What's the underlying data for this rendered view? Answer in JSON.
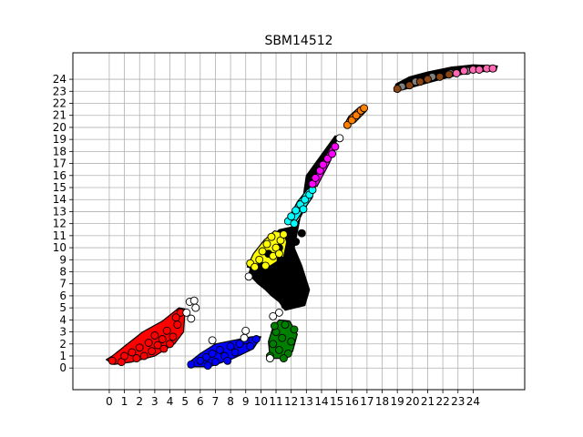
{
  "chart_data": {
    "type": "scatter",
    "title": "SBM14512",
    "xlabel": "",
    "ylabel": "",
    "xlim": [
      -2.4,
      27.4
    ],
    "ylim": [
      -1.8,
      26.2
    ],
    "xticks": [
      "0",
      "1",
      "2",
      "3",
      "4",
      "5",
      "6",
      "7",
      "8",
      "9",
      "10",
      "11",
      "12",
      "13",
      "14",
      "15",
      "16",
      "17",
      "18",
      "19",
      "20",
      "21",
      "22",
      "23",
      "24"
    ],
    "yticks": [
      "0",
      "1",
      "2",
      "3",
      "4",
      "5",
      "6",
      "7",
      "8",
      "9",
      "10",
      "11",
      "12",
      "13",
      "14",
      "15",
      "16",
      "17",
      "18",
      "19",
      "20",
      "21",
      "22",
      "23",
      "24"
    ],
    "grid": true,
    "legend": "none",
    "series": [
      {
        "color": "#000000",
        "points": [
          [
            9.5,
            8.0
          ],
          [
            10.0,
            8.5
          ],
          [
            10.2,
            7.2
          ],
          [
            10.5,
            9.5
          ],
          [
            10.8,
            6.5
          ],
          [
            11.0,
            8.0
          ],
          [
            11.3,
            9.0
          ],
          [
            11.5,
            7.0
          ],
          [
            11.8,
            6.0
          ],
          [
            12.0,
            8.5
          ],
          [
            12.2,
            5.5
          ],
          [
            12.5,
            7.5
          ],
          [
            12.8,
            6.5
          ],
          [
            11.2,
            10.0
          ],
          [
            12.3,
            10.5
          ],
          [
            12.7,
            11.2
          ],
          [
            10.6,
            7.8
          ],
          [
            11.6,
            5.2
          ]
        ]
      },
      {
        "color": "#ff0000",
        "points": [
          [
            0.2,
            0.6
          ],
          [
            0.8,
            0.5
          ],
          [
            1.0,
            1.0
          ],
          [
            1.5,
            1.3
          ],
          [
            2.0,
            1.7
          ],
          [
            2.3,
            1.0
          ],
          [
            2.6,
            2.1
          ],
          [
            3.0,
            2.7
          ],
          [
            3.2,
            1.9
          ],
          [
            3.5,
            2.4
          ],
          [
            3.8,
            3.1
          ],
          [
            4.0,
            2.0
          ],
          [
            4.2,
            2.6
          ],
          [
            4.5,
            3.6
          ],
          [
            4.7,
            4.6
          ],
          [
            1.8,
            0.8
          ],
          [
            2.8,
            1.4
          ],
          [
            3.6,
            1.6
          ],
          [
            4.4,
            4.2
          ]
        ]
      },
      {
        "color": "#0000ff",
        "points": [
          [
            5.4,
            0.3
          ],
          [
            6.0,
            0.6
          ],
          [
            6.4,
            0.9
          ],
          [
            6.8,
            1.2
          ],
          [
            7.0,
            0.5
          ],
          [
            7.3,
            1.5
          ],
          [
            7.6,
            1.0
          ],
          [
            8.0,
            1.8
          ],
          [
            8.3,
            1.3
          ],
          [
            8.6,
            2.0
          ],
          [
            9.0,
            2.3
          ],
          [
            9.3,
            1.8
          ],
          [
            9.7,
            2.4
          ],
          [
            6.5,
            0.2
          ],
          [
            7.8,
            0.6
          ]
        ]
      },
      {
        "color": "#008000",
        "points": [
          [
            10.6,
            1.0
          ],
          [
            10.8,
            2.0
          ],
          [
            11.0,
            3.0
          ],
          [
            11.2,
            1.5
          ],
          [
            11.4,
            2.5
          ],
          [
            11.6,
            3.6
          ],
          [
            11.8,
            1.2
          ],
          [
            12.0,
            2.2
          ],
          [
            12.2,
            3.2
          ],
          [
            11.5,
            0.8
          ],
          [
            10.9,
            3.5
          ]
        ]
      },
      {
        "color": "#ffff00",
        "points": [
          [
            9.3,
            8.7
          ],
          [
            9.6,
            8.4
          ],
          [
            9.9,
            9.0
          ],
          [
            10.1,
            9.7
          ],
          [
            10.4,
            10.3
          ],
          [
            10.7,
            10.9
          ],
          [
            11.0,
            10.0
          ],
          [
            11.3,
            10.6
          ],
          [
            11.5,
            11.1
          ],
          [
            10.3,
            8.5
          ],
          [
            10.8,
            9.3
          ],
          [
            11.2,
            9.5
          ]
        ]
      },
      {
        "color": "#00ffff",
        "points": [
          [
            11.8,
            12.2
          ],
          [
            12.0,
            12.6
          ],
          [
            12.3,
            13.1
          ],
          [
            12.6,
            13.6
          ],
          [
            12.9,
            14.0
          ],
          [
            13.2,
            14.4
          ],
          [
            13.4,
            14.8
          ],
          [
            12.2,
            12.0
          ],
          [
            12.8,
            13.2
          ]
        ]
      },
      {
        "color": "#ff00ff",
        "points": [
          [
            13.4,
            15.3
          ],
          [
            13.6,
            15.8
          ],
          [
            13.9,
            16.4
          ],
          [
            14.1,
            16.9
          ],
          [
            14.4,
            17.4
          ],
          [
            14.7,
            17.8
          ],
          [
            14.9,
            18.4
          ]
        ]
      },
      {
        "color": "#ffffff",
        "points": [
          [
            5.3,
            5.5
          ],
          [
            5.6,
            5.6
          ],
          [
            5.1,
            4.6
          ],
          [
            5.4,
            4.1
          ],
          [
            5.7,
            5.0
          ],
          [
            8.9,
            2.5
          ],
          [
            9.0,
            3.1
          ],
          [
            11.2,
            4.6
          ],
          [
            10.8,
            4.3
          ],
          [
            9.2,
            7.6
          ],
          [
            10.6,
            0.8
          ],
          [
            15.2,
            19.1
          ],
          [
            6.8,
            2.3
          ]
        ]
      },
      {
        "color": "#ff8000",
        "points": [
          [
            15.7,
            20.2
          ],
          [
            16.0,
            20.6
          ],
          [
            16.3,
            21.0
          ],
          [
            16.6,
            21.4
          ],
          [
            16.8,
            21.6
          ]
        ]
      },
      {
        "color": "#808080",
        "points": [
          [
            19.3,
            23.4
          ],
          [
            20.2,
            23.8
          ],
          [
            21.3,
            24.2
          ],
          [
            22.5,
            24.5
          ],
          [
            23.6,
            24.7
          ]
        ]
      },
      {
        "color": "#8b4513",
        "points": [
          [
            19.0,
            23.2
          ],
          [
            19.8,
            23.5
          ],
          [
            20.5,
            23.8
          ],
          [
            21.0,
            24.0
          ],
          [
            21.8,
            24.2
          ],
          [
            22.4,
            24.4
          ]
        ]
      },
      {
        "color": "#ff69b4",
        "points": [
          [
            22.9,
            24.5
          ],
          [
            23.4,
            24.7
          ],
          [
            24.0,
            24.8
          ],
          [
            24.4,
            24.8
          ],
          [
            24.9,
            24.9
          ],
          [
            25.3,
            24.9
          ]
        ]
      }
    ]
  }
}
